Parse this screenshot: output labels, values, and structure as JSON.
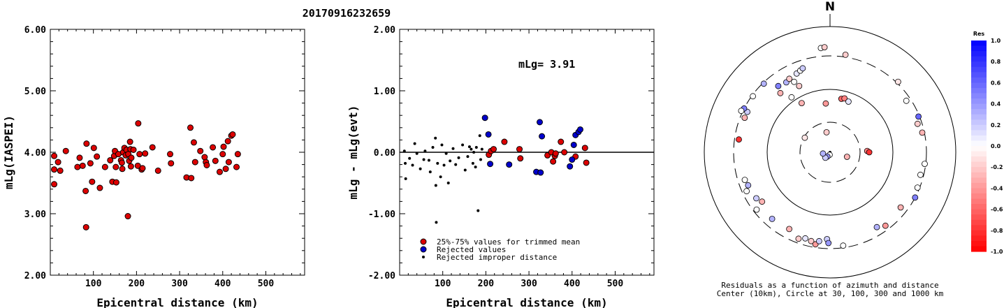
{
  "title": "20170916232659",
  "chart_data": [
    {
      "type": "scatter",
      "xlabel": "Epicentral distance (km)",
      "ylabel": "mLg(IASPEI)",
      "xlim": [
        0,
        590
      ],
      "ylim": [
        2.0,
        6.0
      ],
      "xticks": [
        "100",
        "200",
        "300",
        "400",
        "500"
      ],
      "yticks": [
        "2.00",
        "3.00",
        "4.00",
        "5.00",
        "6.00"
      ],
      "series": [
        {
          "color": "#dd0000",
          "points": [
            [
              9,
              3.94
            ],
            [
              9,
              3.72
            ],
            [
              9,
              3.48
            ],
            [
              18,
              3.84
            ],
            [
              23,
              3.7
            ],
            [
              36,
              4.02
            ],
            [
              63,
              3.76
            ],
            [
              68,
              3.91
            ],
            [
              75,
              3.78
            ],
            [
              82,
              3.37
            ],
            [
              83,
              2.78
            ],
            [
              84,
              4.14
            ],
            [
              93,
              3.82
            ],
            [
              97,
              3.52
            ],
            [
              101,
              4.07
            ],
            [
              108,
              3.93
            ],
            [
              115,
              3.42
            ],
            [
              127,
              3.76
            ],
            [
              139,
              3.87
            ],
            [
              144,
              3.52
            ],
            [
              148,
              3.94
            ],
            [
              150,
              4.02
            ],
            [
              152,
              3.76
            ],
            [
              153,
              3.51
            ],
            [
              158,
              3.97
            ],
            [
              164,
              3.87
            ],
            [
              166,
              3.83
            ],
            [
              167,
              3.73
            ],
            [
              169,
              4.0
            ],
            [
              172,
              4.07
            ],
            [
              175,
              3.95
            ],
            [
              177,
              4.04
            ],
            [
              180,
              2.96
            ],
            [
              181,
              3.97
            ],
            [
              183,
              3.86
            ],
            [
              185,
              4.17
            ],
            [
              186,
              4.05
            ],
            [
              187,
              3.77
            ],
            [
              188,
              3.91
            ],
            [
              193,
              4.04
            ],
            [
              203,
              3.78
            ],
            [
              204,
              4.47
            ],
            [
              207,
              3.97
            ],
            [
              212,
              3.72
            ],
            [
              214,
              3.74
            ],
            [
              220,
              3.98
            ],
            [
              237,
              4.08
            ],
            [
              250,
              3.7
            ],
            [
              278,
              3.97
            ],
            [
              280,
              3.82
            ],
            [
              316,
              3.59
            ],
            [
              325,
              4.4
            ],
            [
              327,
              3.58
            ],
            [
              333,
              4.16
            ],
            [
              336,
              3.84
            ],
            [
              348,
              4.02
            ],
            [
              358,
              3.92
            ],
            [
              361,
              3.84
            ],
            [
              363,
              3.79
            ],
            [
              377,
              4.08
            ],
            [
              383,
              3.86
            ],
            [
              393,
              3.68
            ],
            [
              400,
              3.97
            ],
            [
              402,
              4.09
            ],
            [
              407,
              3.73
            ],
            [
              412,
              4.18
            ],
            [
              414,
              3.84
            ],
            [
              420,
              4.27
            ],
            [
              423,
              4.29
            ],
            [
              432,
              3.76
            ],
            [
              435,
              3.97
            ]
          ]
        }
      ]
    },
    {
      "type": "scatter",
      "xlabel": "Epicentral distance (km)",
      "ylabel": "mLg - mLg(evt)",
      "xlim": [
        0,
        590
      ],
      "ylim": [
        -2.0,
        2.0
      ],
      "xticks": [
        "100",
        "200",
        "300",
        "400",
        "500"
      ],
      "yticks": [
        "-2.00",
        "-1.00",
        "0.00",
        "1.00",
        "2.00"
      ],
      "reference_line": 0.0,
      "annotation": "mLg= 3.91",
      "legend": [
        {
          "label": "25%-75% values for trimmed mean",
          "color": "#dd0000"
        },
        {
          "label": "Rejected values",
          "color": "#0000cc"
        },
        {
          "label": "Rejected improper distance",
          "color": "#000000"
        }
      ],
      "series": [
        {
          "name": "25%-75% values for trimmed mean",
          "color": "#dd0000",
          "points": [
            [
              207,
              -0.04
            ],
            [
              212,
              0.02
            ],
            [
              218,
              0.05
            ],
            [
              243,
              0.17
            ],
            [
              278,
              0.05
            ],
            [
              280,
              -0.1
            ],
            [
              343,
              -0.05
            ],
            [
              352,
              0.0
            ],
            [
              356,
              -0.15
            ],
            [
              360,
              -0.06
            ],
            [
              362,
              -0.02
            ],
            [
              374,
              0.17
            ],
            [
              382,
              0.0
            ],
            [
              408,
              -0.07
            ],
            [
              430,
              0.07
            ],
            [
              433,
              -0.17
            ]
          ]
        },
        {
          "name": "Rejected values",
          "color": "#0000cc",
          "points": [
            [
              198,
              0.56
            ],
            [
              206,
              0.29
            ],
            [
              210,
              -0.19
            ],
            [
              254,
              -0.2
            ],
            [
              317,
              -0.32
            ],
            [
              325,
              0.49
            ],
            [
              327,
              -0.33
            ],
            [
              330,
              0.26
            ],
            [
              395,
              -0.23
            ],
            [
              400,
              -0.12
            ],
            [
              404,
              0.12
            ],
            [
              408,
              0.28
            ],
            [
              415,
              0.33
            ],
            [
              419,
              0.37
            ]
          ]
        },
        {
          "name": "Rejected improper distance",
          "color": "#000000",
          "points": [
            [
              11,
              0.02
            ],
            [
              13,
              -0.18
            ],
            [
              14,
              -0.43
            ],
            [
              23,
              -0.1
            ],
            [
              30,
              -0.21
            ],
            [
              35,
              0.14
            ],
            [
              40,
              -0.02
            ],
            [
              48,
              -0.27
            ],
            [
              56,
              -0.12
            ],
            [
              59,
              0.02
            ],
            [
              68,
              -0.13
            ],
            [
              71,
              -0.32
            ],
            [
              77,
              0.08
            ],
            [
              83,
              0.23
            ],
            [
              84,
              -0.54
            ],
            [
              85,
              -1.14
            ],
            [
              88,
              -0.18
            ],
            [
              95,
              -0.4
            ],
            [
              98,
              0.12
            ],
            [
              103,
              -0.21
            ],
            [
              108,
              -0.02
            ],
            [
              113,
              -0.5
            ],
            [
              117,
              -0.14
            ],
            [
              124,
              0.06
            ],
            [
              130,
              -0.2
            ],
            [
              137,
              -0.09
            ],
            [
              146,
              0.12
            ],
            [
              152,
              -0.29
            ],
            [
              158,
              -0.07
            ],
            [
              162,
              0.09
            ],
            [
              166,
              0.05
            ],
            [
              170,
              -0.18
            ],
            [
              172,
              0.0
            ],
            [
              176,
              -0.24
            ],
            [
              178,
              0.08
            ],
            [
              182,
              -0.95
            ],
            [
              186,
              0.27
            ],
            [
              188,
              -0.12
            ],
            [
              191,
              0.05
            ]
          ]
        }
      ]
    }
  ],
  "polar": {
    "north_label": "N",
    "caption": [
      "Residuals as a function of azimuth and distance",
      "Center (10km), Circle at 30, 100, 300 and 1000 km"
    ],
    "colorbar": {
      "title": "Res",
      "ticks": [
        "1.0",
        "0.8",
        "0.6",
        "0.4",
        "0.2",
        "0.0",
        "-0.2",
        "-0.4",
        "-0.6",
        "-0.8",
        "-1.0"
      ]
    },
    "points": [
      {
        "az": 190,
        "dist": 11,
        "res": 0.0
      },
      {
        "az": 212,
        "dist": 12,
        "res": 0.4
      },
      {
        "az": 220,
        "dist": 13,
        "res": 0.2
      },
      {
        "az": 260,
        "dist": 13,
        "res": 0.3
      },
      {
        "az": 105,
        "dist": 19,
        "res": -0.3
      },
      {
        "az": 350,
        "dist": 21,
        "res": -0.2
      },
      {
        "az": 300,
        "dist": 29,
        "res": -0.1
      },
      {
        "az": 88,
        "dist": 39,
        "res": -0.5
      },
      {
        "az": 90,
        "dist": 42,
        "res": -0.8
      },
      {
        "az": 355,
        "dist": 60,
        "res": -0.4
      },
      {
        "az": 12,
        "dist": 74,
        "res": -0.6
      },
      {
        "az": 15,
        "dist": 77,
        "res": -0.5
      },
      {
        "az": 20,
        "dist": 72,
        "res": 0.1
      },
      {
        "az": 330,
        "dist": 80,
        "res": -0.3
      },
      {
        "az": 325,
        "dist": 115,
        "res": 0.0
      },
      {
        "az": 335,
        "dist": 140,
        "res": -0.2
      },
      {
        "az": 320,
        "dist": 160,
        "res": -0.3
      },
      {
        "az": 333,
        "dist": 170,
        "res": 0.0
      },
      {
        "az": 328,
        "dist": 190,
        "res": 0.3
      },
      {
        "az": 322,
        "dist": 200,
        "res": 0.5
      },
      {
        "az": 331,
        "dist": 200,
        "res": -0.2
      },
      {
        "az": 337,
        "dist": 210,
        "res": 0.1
      },
      {
        "az": 340,
        "dist": 220,
        "res": 0.0
      },
      {
        "az": 342,
        "dist": 230,
        "res": 0.2
      },
      {
        "az": 316,
        "dist": 290,
        "res": 0.3
      },
      {
        "az": 306,
        "dist": 290,
        "res": 0.0
      },
      {
        "az": 296,
        "dist": 260,
        "res": 0.2
      },
      {
        "az": 292,
        "dist": 260,
        "res": -0.3
      },
      {
        "az": 297,
        "dist": 300,
        "res": 0.5
      },
      {
        "az": 295,
        "dist": 320,
        "res": 0.0
      },
      {
        "az": 278,
        "dist": 260,
        "res": -0.8
      },
      {
        "az": 252,
        "dist": 240,
        "res": 0.0
      },
      {
        "az": 245,
        "dist": 260,
        "res": 0.0
      },
      {
        "az": 248,
        "dist": 230,
        "res": 0.3
      },
      {
        "az": 238,
        "dist": 220,
        "res": 0.2
      },
      {
        "az": 234,
        "dist": 200,
        "res": -0.3
      },
      {
        "az": 232,
        "dist": 270,
        "res": 0.0
      },
      {
        "az": 221,
        "dist": 230,
        "res": 0.3
      },
      {
        "az": 208,
        "dist": 220,
        "res": -0.3
      },
      {
        "az": 200,
        "dist": 260,
        "res": -0.2
      },
      {
        "az": 196,
        "dist": 240,
        "res": 0.1
      },
      {
        "az": 192,
        "dist": 250,
        "res": -0.2
      },
      {
        "az": 189,
        "dist": 270,
        "res": -0.4
      },
      {
        "az": 187,
        "dist": 240,
        "res": 0.2
      },
      {
        "az": 182,
        "dist": 220,
        "res": 0.2
      },
      {
        "az": 181,
        "dist": 250,
        "res": 0.4
      },
      {
        "az": 172,
        "dist": 280,
        "res": 0.0
      },
      {
        "az": 148,
        "dist": 230,
        "res": 0.3
      },
      {
        "az": 143,
        "dist": 260,
        "res": -0.4
      },
      {
        "az": 128,
        "dist": 240,
        "res": -0.3
      },
      {
        "az": 118,
        "dist": 300,
        "res": 0.5
      },
      {
        "az": 112,
        "dist": 280,
        "res": 0.0
      },
      {
        "az": 104,
        "dist": 270,
        "res": 0.0
      },
      {
        "az": 97,
        "dist": 290,
        "res": 0.0
      },
      {
        "az": 78,
        "dist": 280,
        "res": -0.3
      },
      {
        "az": 72,
        "dist": 260,
        "res": -0.2
      },
      {
        "az": 68,
        "dist": 290,
        "res": 0.6
      },
      {
        "az": 56,
        "dist": 260,
        "res": 0.0
      },
      {
        "az": 44,
        "dist": 320,
        "res": -0.1
      },
      {
        "az": 9,
        "dist": 330,
        "res": -0.2
      },
      {
        "az": 355,
        "dist": 420,
        "res": 0.0
      },
      {
        "az": 357,
        "dist": 430,
        "res": -0.2
      }
    ]
  }
}
